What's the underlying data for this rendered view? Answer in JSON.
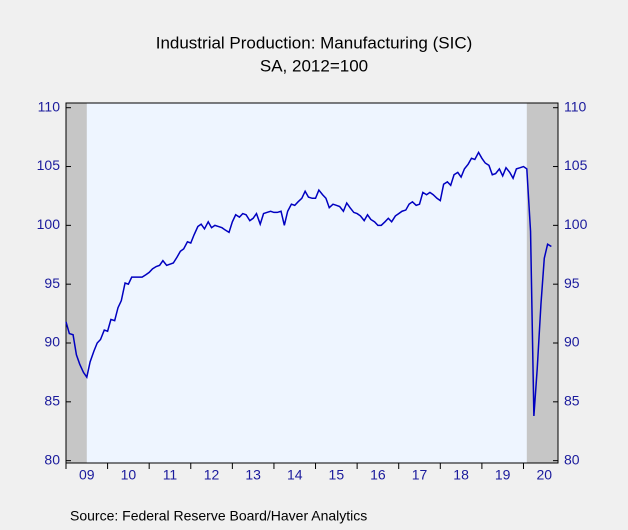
{
  "chart_data": {
    "type": "line",
    "title": "Industrial Production: Manufacturing (SIC)",
    "subtitle": "SA, 2012=100",
    "source": "Source:  Federal Reserve Board/Haver Analytics",
    "xlim": [
      2009,
      2020.83
    ],
    "xticks": [
      {
        "value": 2009.5,
        "label": "09"
      },
      {
        "value": 2010.5,
        "label": "10"
      },
      {
        "value": 2011.5,
        "label": "11"
      },
      {
        "value": 2012.5,
        "label": "12"
      },
      {
        "value": 2013.5,
        "label": "13"
      },
      {
        "value": 2014.5,
        "label": "14"
      },
      {
        "value": 2015.5,
        "label": "15"
      },
      {
        "value": 2016.5,
        "label": "16"
      },
      {
        "value": 2017.5,
        "label": "17"
      },
      {
        "value": 2018.5,
        "label": "18"
      },
      {
        "value": 2019.5,
        "label": "19"
      },
      {
        "value": 2020.5,
        "label": "20"
      }
    ],
    "ylim": [
      79.8,
      110.4
    ],
    "yticks": [
      80,
      85,
      90,
      95,
      100,
      105,
      110
    ],
    "y2lim": [
      79.8,
      110.4
    ],
    "y2ticks": [
      80,
      85,
      90,
      95,
      100,
      105,
      110
    ],
    "recessions": [
      [
        2009,
        2009.5
      ],
      [
        2020.08,
        2020.83
      ]
    ],
    "recession_color": "#c6c6c6",
    "plot_background": "#eef5ff",
    "x": [
      2009.0,
      2009.08,
      2009.17,
      2009.25,
      2009.33,
      2009.42,
      2009.5,
      2009.58,
      2009.67,
      2009.75,
      2009.83,
      2009.92,
      2010.0,
      2010.08,
      2010.17,
      2010.25,
      2010.33,
      2010.42,
      2010.5,
      2010.58,
      2010.67,
      2010.75,
      2010.83,
      2010.92,
      2011.0,
      2011.08,
      2011.17,
      2011.25,
      2011.33,
      2011.42,
      2011.5,
      2011.58,
      2011.67,
      2011.75,
      2011.83,
      2011.92,
      2012.0,
      2012.08,
      2012.17,
      2012.25,
      2012.33,
      2012.42,
      2012.5,
      2012.58,
      2012.67,
      2012.75,
      2012.83,
      2012.92,
      2013.0,
      2013.08,
      2013.17,
      2013.25,
      2013.33,
      2013.42,
      2013.5,
      2013.58,
      2013.67,
      2013.75,
      2013.83,
      2013.92,
      2014.0,
      2014.08,
      2014.17,
      2014.25,
      2014.33,
      2014.42,
      2014.5,
      2014.58,
      2014.67,
      2014.75,
      2014.83,
      2014.92,
      2015.0,
      2015.08,
      2015.17,
      2015.25,
      2015.33,
      2015.42,
      2015.5,
      2015.58,
      2015.67,
      2015.75,
      2015.83,
      2015.92,
      2016.0,
      2016.08,
      2016.17,
      2016.25,
      2016.33,
      2016.42,
      2016.5,
      2016.58,
      2016.67,
      2016.75,
      2016.83,
      2016.92,
      2017.0,
      2017.08,
      2017.17,
      2017.25,
      2017.33,
      2017.42,
      2017.5,
      2017.58,
      2017.67,
      2017.75,
      2017.83,
      2017.92,
      2018.0,
      2018.08,
      2018.17,
      2018.25,
      2018.33,
      2018.42,
      2018.5,
      2018.58,
      2018.67,
      2018.75,
      2018.83,
      2018.92,
      2019.0,
      2019.08,
      2019.17,
      2019.25,
      2019.33,
      2019.42,
      2019.5,
      2019.58,
      2019.67,
      2019.75,
      2019.83,
      2019.92,
      2020.0,
      2020.08,
      2020.17,
      2020.25,
      2020.33,
      2020.42,
      2020.5,
      2020.58,
      2020.67
    ],
    "series": [
      {
        "color": "#0000c0",
        "values": [
          91.8,
          90.8,
          90.7,
          89.0,
          88.2,
          87.5,
          87.1,
          88.4,
          89.3,
          90.0,
          90.3,
          91.1,
          91.0,
          92.0,
          91.9,
          93.0,
          93.6,
          95.1,
          95.0,
          95.6,
          95.6,
          95.6,
          95.6,
          95.8,
          96.0,
          96.3,
          96.5,
          96.6,
          97.0,
          96.6,
          96.7,
          96.8,
          97.3,
          97.8,
          98.0,
          98.6,
          98.5,
          99.2,
          99.9,
          100.1,
          99.7,
          100.3,
          99.8,
          100.0,
          99.9,
          99.8,
          99.6,
          99.4,
          100.3,
          100.9,
          100.7,
          101.0,
          100.9,
          100.4,
          100.6,
          101.0,
          100.1,
          101.0,
          101.1,
          101.2,
          101.1,
          101.1,
          101.2,
          100.0,
          101.2,
          101.8,
          101.7,
          102.0,
          102.3,
          102.9,
          102.4,
          102.3,
          102.3,
          103.0,
          102.6,
          102.3,
          101.5,
          101.8,
          101.7,
          101.6,
          101.2,
          101.9,
          101.5,
          101.1,
          101.0,
          100.8,
          100.4,
          100.9,
          100.5,
          100.3,
          100.0,
          100.0,
          100.3,
          100.6,
          100.3,
          100.8,
          101.0,
          101.2,
          101.3,
          101.8,
          102.0,
          101.7,
          101.8,
          102.8,
          102.6,
          102.8,
          102.6,
          102.3,
          102.1,
          103.5,
          103.7,
          103.4,
          104.3,
          104.5,
          104.1,
          104.8,
          105.2,
          105.7,
          105.6,
          106.2,
          105.7,
          105.3,
          105.1,
          104.3,
          104.4,
          104.8,
          104.2,
          104.9,
          104.5,
          104.0,
          104.8,
          104.9,
          105.0,
          104.8,
          99.5,
          83.8,
          87.8,
          93.3,
          97.2,
          98.4,
          98.2
        ]
      }
    ]
  }
}
